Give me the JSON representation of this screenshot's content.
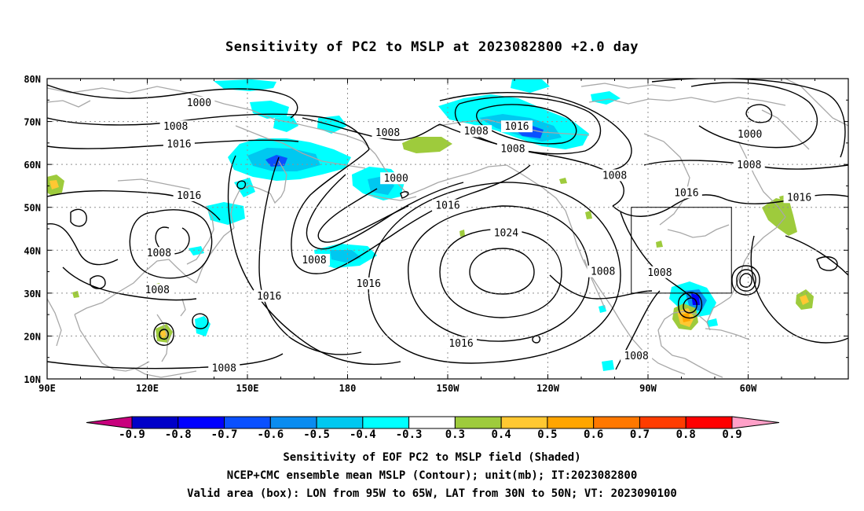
{
  "title": "Sensitivity of PC2 to MSLP at 2023082800 +2.0 day",
  "lat_labels": [
    "80N",
    "70N",
    "60N",
    "50N",
    "40N",
    "30N",
    "20N",
    "10N"
  ],
  "lon_labels": [
    "90E",
    "120E",
    "150E",
    "180",
    "150W",
    "120W",
    "90W",
    "60W"
  ],
  "contour_labels": [
    {
      "text": "1000",
      "lon": 135.5,
      "lat": 74.1
    },
    {
      "text": "1008",
      "lon": 128.5,
      "lat": 68.6
    },
    {
      "text": "1016",
      "lon": 129.5,
      "lat": 64.5
    },
    {
      "text": "1008",
      "lon": 192,
      "lat": 67.2
    },
    {
      "text": "1008",
      "lon": 218.5,
      "lat": 67.5
    },
    {
      "text": "1016",
      "lon": 230.7,
      "lat": 68.6
    },
    {
      "text": "1008",
      "lon": 229.5,
      "lat": 63.4
    },
    {
      "text": "1000",
      "lon": 300.5,
      "lat": 66.8
    },
    {
      "text": "1008",
      "lon": 300.3,
      "lat": 59.7
    },
    {
      "text": "1008",
      "lon": 260,
      "lat": 57.2
    },
    {
      "text": "1000",
      "lon": 194.5,
      "lat": 56.5
    },
    {
      "text": "1016",
      "lon": 281.5,
      "lat": 53.2
    },
    {
      "text": "1016",
      "lon": 132.5,
      "lat": 52.5
    },
    {
      "text": "1016",
      "lon": 315.3,
      "lat": 52.1
    },
    {
      "text": "1016",
      "lon": 210,
      "lat": 50.2
    },
    {
      "text": "1024",
      "lon": 227.5,
      "lat": 43.8
    },
    {
      "text": "1008",
      "lon": 123.5,
      "lat": 39.1
    },
    {
      "text": "1008",
      "lon": 170,
      "lat": 37.5
    },
    {
      "text": "1008",
      "lon": 256.5,
      "lat": 34.8
    },
    {
      "text": "1008",
      "lon": 273.5,
      "lat": 34.6
    },
    {
      "text": "1008",
      "lon": 123,
      "lat": 30.5
    },
    {
      "text": "1016",
      "lon": 156.5,
      "lat": 29.1
    },
    {
      "text": "1016",
      "lon": 186.3,
      "lat": 32.0
    },
    {
      "text": "1016",
      "lon": 214,
      "lat": 18.1
    },
    {
      "text": "1008",
      "lon": 143,
      "lat": 12.3
    },
    {
      "text": "1008",
      "lon": 266.5,
      "lat": 15.1
    }
  ],
  "box": {
    "lon_min": 265,
    "lon_max": 295,
    "lat_min": 30,
    "lat_max": 50
  },
  "colorbar": {
    "labels": [
      "-0.9",
      "-0.8",
      "-0.7",
      "-0.6",
      "-0.5",
      "-0.4",
      "-0.3",
      "0.3",
      "0.4",
      "0.5",
      "0.6",
      "0.7",
      "0.8",
      "0.9"
    ],
    "colors": [
      "#0000c8",
      "#0000ff",
      "#0a50ff",
      "#0a8cf0",
      "#00c8f0",
      "#00ffff",
      "#ffffff",
      "#9ecb3c",
      "#ffc832",
      "#ffa500",
      "#ff7800",
      "#ff3c00",
      "#ff0000"
    ],
    "low_tip_color": "#c8007d",
    "high_tip_color": "#ffa0c8"
  },
  "captions": [
    "Sensitivity of EOF PC2 to MSLP field (Shaded)",
    "NCEP+CMC ensemble mean MSLP (Contour); unit(mb); IT:2023082800",
    "Valid area (box): LON from 95W to 65W, LAT from 30N to 50N; VT: 2023090100"
  ]
}
